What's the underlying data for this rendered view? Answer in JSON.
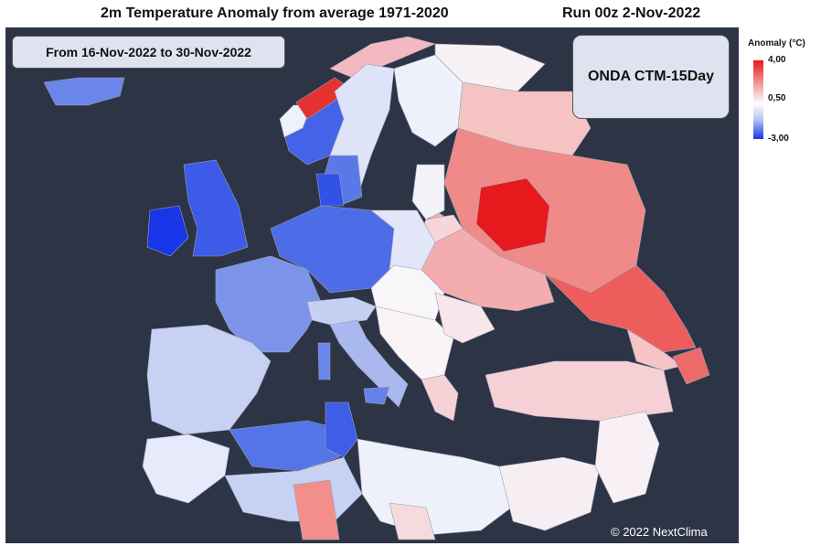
{
  "title": "2m Temperature Anomaly from average 1971-2020",
  "run": "Run 00z 2-Nov-2022",
  "period": "From 16-Nov-2022 to 30-Nov-2022",
  "model": "ONDA CTM-15Day",
  "copyright": "© 2022 NextClima",
  "legend": {
    "title": "Anomaly (°C)",
    "max": "4,00",
    "mid": "0,50",
    "min": "-3,00"
  },
  "colors": {
    "sea": "#2d3446",
    "warm": "#e8191c",
    "neutral": "#ffffff",
    "cold": "#1836e8"
  }
}
